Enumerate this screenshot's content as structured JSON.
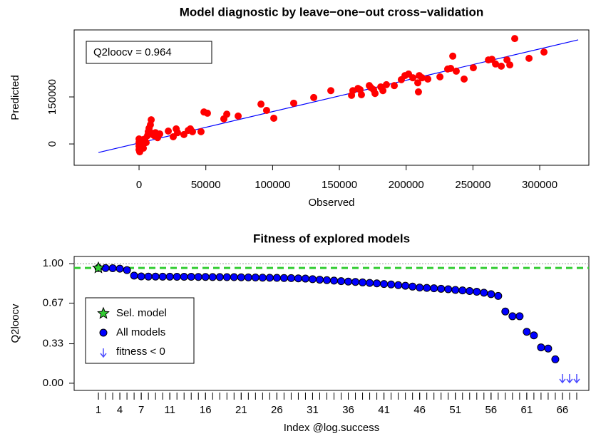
{
  "chart_data": [
    {
      "type": "scatter",
      "title": "Model diagnostic by leave−one−out cross−validation",
      "x_label": "Observed",
      "y_label": "Predicted",
      "annotation": "Q2loocv = 0.964",
      "color": "#ff0000",
      "x": [
        0,
        0,
        0,
        0,
        500,
        1000,
        1600,
        2700,
        3200,
        4300,
        5300,
        6400,
        6900,
        7500,
        8500,
        9100,
        10100,
        11200,
        12300,
        13300,
        13900,
        15500,
        21900,
        25600,
        27800,
        28800,
        33600,
        36800,
        38400,
        40000,
        46400,
        48600,
        51200,
        63500,
        65700,
        74200,
        91300,
        95500,
        100900,
        115800,
        130800,
        143600,
        159100,
        160100,
        163900,
        165500,
        166500,
        172400,
        173500,
        175600,
        176700,
        181000,
        182600,
        185200,
        191100,
        196400,
        199100,
        201800,
        205000,
        208700,
        209200,
        209800,
        211900,
        216200,
        225300,
        231100,
        233300,
        234900,
        237500,
        243400,
        250300,
        261600,
        264200,
        266900,
        271200,
        275500,
        277600,
        281300,
        292000,
        303200
      ],
      "values": [
        16000,
        4500,
        -6800,
        -18000,
        -25000,
        9000,
        -2300,
        13600,
        -13600,
        15900,
        4500,
        27000,
        39000,
        50000,
        61000,
        77000,
        34000,
        27000,
        36000,
        30000,
        20000,
        32000,
        41000,
        23000,
        48000,
        36000,
        30000,
        43000,
        48000,
        39000,
        39000,
        102000,
        98000,
        80000,
        95000,
        89000,
        127000,
        107000,
        82000,
        130000,
        148000,
        170000,
        155000,
        170000,
        177000,
        173000,
        157000,
        186000,
        180000,
        173000,
        161000,
        182000,
        170000,
        189000,
        186000,
        205000,
        218000,
        223000,
        211000,
        195000,
        166000,
        218000,
        211000,
        207000,
        214000,
        239000,
        241000,
        280000,
        232000,
        207000,
        243000,
        268000,
        270000,
        255000,
        248000,
        268000,
        252000,
        336000,
        273000,
        293000
      ],
      "fit_line": {
        "color": "#0000ff",
        "x": [
          -30400,
          328800
        ],
        "values": [
          -27300,
          331900
        ]
      },
      "xlim": [
        -48600,
        336800
      ],
      "ylim": [
        -68000,
        363600
      ],
      "xticks": [
        0,
        50000,
        100000,
        150000,
        200000,
        250000,
        300000
      ],
      "yticks": [
        0,
        150000
      ]
    },
    {
      "type": "dotplot",
      "title": "Fitness of explored models",
      "x_label": "Index @log.success",
      "y_label": "Q2loocv",
      "xlim": [
        -2.4,
        69.7
      ],
      "ylim": [
        -0.06,
        1.06
      ],
      "xticks": [
        1,
        4,
        7,
        11,
        16,
        21,
        26,
        31,
        36,
        41,
        46,
        51,
        56,
        61,
        66
      ],
      "minor_xticks": [
        1,
        2,
        3,
        4,
        5,
        6,
        7,
        8,
        9,
        10,
        11,
        12,
        13,
        14,
        15,
        16,
        17,
        18,
        19,
        20,
        21,
        22,
        23,
        24,
        25,
        26,
        27,
        28,
        29,
        30,
        31,
        32,
        33,
        34,
        35,
        36,
        37,
        38,
        39,
        40,
        41,
        42,
        43,
        44,
        45,
        46,
        47,
        48,
        49,
        50,
        51,
        52,
        53,
        54,
        55,
        56,
        57,
        58,
        59,
        60,
        61,
        62,
        63,
        64,
        65,
        66,
        67,
        68
      ],
      "yticks": [
        {
          "value": 1,
          "label": "1.00"
        },
        {
          "value": 0.67,
          "label": "0.67"
        },
        {
          "value": 0.33,
          "label": "0.33"
        },
        {
          "value": 0,
          "label": "0.00"
        }
      ],
      "reference_line": 1,
      "series": [
        {
          "name": "Sel. model",
          "color": "#33cc33",
          "x": [
            1
          ],
          "values": [
            0.964
          ]
        },
        {
          "name": "All models",
          "color": "#0000ff",
          "x": [
            1,
            2,
            3,
            4,
            5,
            6,
            7,
            8,
            9,
            10,
            11,
            12,
            13,
            14,
            15,
            16,
            17,
            18,
            19,
            20,
            21,
            22,
            23,
            24,
            25,
            26,
            27,
            28,
            29,
            30,
            31,
            32,
            33,
            34,
            35,
            36,
            37,
            38,
            39,
            40,
            41,
            42,
            43,
            44,
            45,
            46,
            47,
            48,
            49,
            50,
            51,
            52,
            53,
            54,
            55,
            56,
            57,
            58,
            59,
            60,
            61,
            62,
            63,
            64,
            65
          ],
          "values": [
            0.964,
            0.963,
            0.962,
            0.958,
            0.946,
            0.9,
            0.893,
            0.892,
            0.892,
            0.891,
            0.891,
            0.89,
            0.89,
            0.89,
            0.889,
            0.889,
            0.888,
            0.888,
            0.887,
            0.887,
            0.886,
            0.885,
            0.884,
            0.883,
            0.882,
            0.881,
            0.88,
            0.879,
            0.877,
            0.875,
            0.87,
            0.866,
            0.862,
            0.858,
            0.854,
            0.85,
            0.847,
            0.843,
            0.839,
            0.835,
            0.83,
            0.826,
            0.82,
            0.815,
            0.808,
            0.8,
            0.797,
            0.794,
            0.79,
            0.786,
            0.78,
            0.776,
            0.771,
            0.765,
            0.757,
            0.745,
            0.73,
            0.6,
            0.56,
            0.56,
            0.43,
            0.4,
            0.3,
            0.29,
            0.2
          ]
        },
        {
          "name": "fitness < 0",
          "color": "#4d4dff",
          "x": [
            66,
            67,
            68
          ]
        }
      ]
    }
  ]
}
